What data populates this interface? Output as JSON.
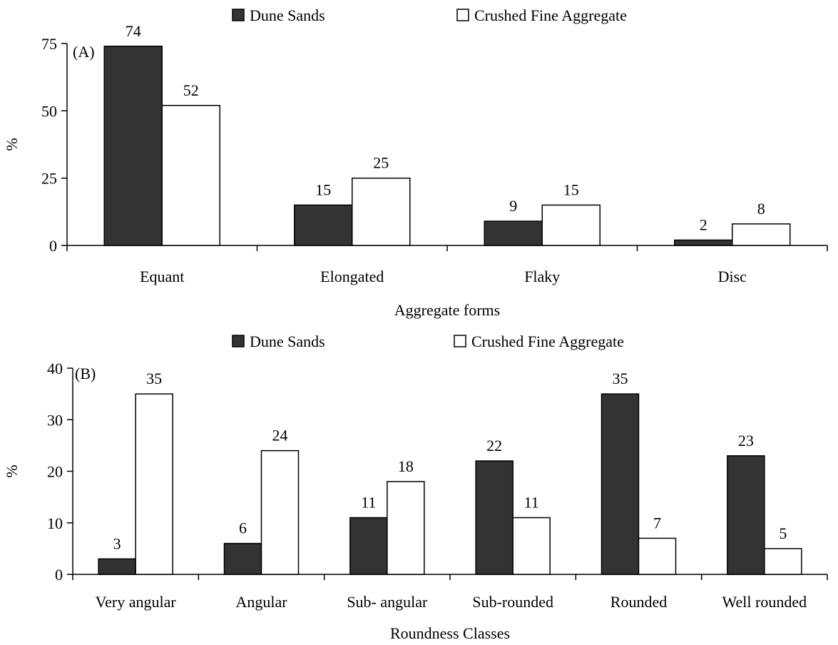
{
  "chart_data": [
    {
      "type": "bar",
      "panel_label": "(A)",
      "categories": [
        "Equant",
        "Elongated",
        "Flaky",
        "Disc"
      ],
      "series": [
        {
          "name": "Dune Sands",
          "values": [
            74,
            15,
            9,
            2
          ],
          "color": "#333333"
        },
        {
          "name": "Crushed Fine Aggregate",
          "values": [
            52,
            25,
            15,
            8
          ],
          "color": "#ffffff"
        }
      ],
      "xlabel": "Aggregate forms",
      "ylabel": "%",
      "ylim": [
        0,
        75
      ],
      "yticks": [
        0,
        25,
        50,
        75
      ],
      "grid": false,
      "legend_position": "top"
    },
    {
      "type": "bar",
      "panel_label": "(B)",
      "categories": [
        "Very angular",
        "Angular",
        "Sub- angular",
        "Sub-rounded",
        "Rounded",
        "Well rounded"
      ],
      "series": [
        {
          "name": "Dune Sands",
          "values": [
            3,
            6,
            11,
            22,
            35,
            23
          ],
          "color": "#333333"
        },
        {
          "name": "Crushed Fine Aggregate",
          "values": [
            35,
            24,
            18,
            11,
            7,
            5
          ],
          "color": "#ffffff"
        }
      ],
      "xlabel": "Roundness Classes",
      "ylabel": "%",
      "ylim": [
        0,
        40
      ],
      "yticks": [
        0,
        10,
        20,
        30,
        40
      ],
      "grid": false,
      "legend_position": "top"
    }
  ]
}
